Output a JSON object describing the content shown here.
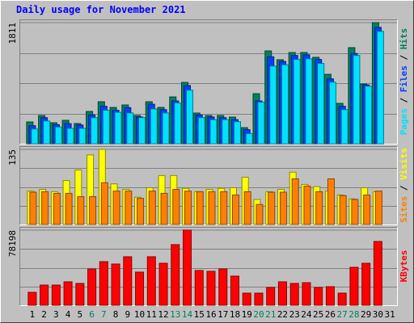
{
  "chart_data": [
    {
      "type": "bar",
      "title": "Daily usage for November 2021",
      "legend_separator": " / ",
      "ylim": [
        0,
        1811
      ],
      "yticks": [
        1811
      ],
      "series": [
        {
          "name": "Hits",
          "color": "#00805c",
          "values": [
            326,
            422,
            314,
            350,
            302,
            483,
            628,
            543,
            580,
            422,
            628,
            543,
            700,
            917,
            459,
            422,
            422,
            398,
            241,
            748,
            1388,
            1256,
            1364,
            1364,
            1292,
            1038,
            604,
            1437,
            893,
            1811,
            null
          ]
        },
        {
          "name": "Files",
          "color": "#0040ff",
          "values": [
            270,
            390,
            285,
            300,
            280,
            430,
            560,
            500,
            540,
            400,
            590,
            510,
            640,
            870,
            430,
            400,
            390,
            360,
            210,
            640,
            1300,
            1230,
            1320,
            1330,
            1260,
            970,
            560,
            1350,
            880,
            1740,
            null
          ]
        },
        {
          "name": "Pages",
          "color": "#00e0ff",
          "values": [
            220,
            340,
            250,
            230,
            230,
            390,
            500,
            470,
            460,
            390,
            520,
            460,
            610,
            800,
            390,
            360,
            360,
            330,
            150,
            620,
            1160,
            1180,
            1260,
            1270,
            1200,
            920,
            510,
            1320,
            860,
            1680,
            null
          ]
        }
      ]
    },
    {
      "type": "bar",
      "legend_separator": " / ",
      "ylim": [
        0,
        135
      ],
      "yticks": [
        135
      ],
      "series": [
        {
          "name": "Visits",
          "color": "#ffff00",
          "values": [
            60,
            63,
            59,
            79,
            98,
            125,
            135,
            73,
            63,
            49,
            66,
            88,
            88,
            65,
            59,
            63,
            65,
            66,
            85,
            45,
            59,
            63,
            94,
            72,
            68,
            60,
            53,
            46,
            66,
            59,
            null
          ]
        },
        {
          "name": "Sites",
          "color": "#ff8000",
          "values": [
            58,
            59,
            56,
            56,
            50,
            50,
            75,
            60,
            60,
            47,
            60,
            56,
            63,
            60,
            59,
            59,
            59,
            53,
            59,
            36,
            58,
            58,
            82,
            69,
            59,
            82,
            52,
            45,
            53,
            60,
            null
          ]
        }
      ]
    },
    {
      "type": "bar",
      "ylim": [
        0,
        78198
      ],
      "yticks": [
        78198
      ],
      "series": [
        {
          "name": "KBytes",
          "color": "#ff0000",
          "values": [
            13450,
            21000,
            21000,
            24400,
            22700,
            37800,
            45400,
            42900,
            50500,
            34500,
            50500,
            43700,
            63100,
            78198,
            36200,
            35300,
            37800,
            30300,
            12600,
            12600,
            18500,
            24400,
            22700,
            23500,
            18500,
            19300,
            12600,
            39500,
            43700,
            66400,
            null
          ]
        }
      ],
      "categories": [
        "1",
        "2",
        "3",
        "4",
        "5",
        "6",
        "7",
        "8",
        "9",
        "10",
        "11",
        "12",
        "13",
        "14",
        "15",
        "16",
        "17",
        "18",
        "19",
        "20",
        "21",
        "22",
        "23",
        "24",
        "25",
        "26",
        "27",
        "28",
        "29",
        "30",
        "31"
      ],
      "category_colors": [
        "#000000",
        "#000000",
        "#000000",
        "#000000",
        "#000000",
        "#00805c",
        "#00805c",
        "#000000",
        "#000000",
        "#000000",
        "#000000",
        "#000000",
        "#00805c",
        "#00805c",
        "#000000",
        "#000000",
        "#000000",
        "#000000",
        "#000000",
        "#00805c",
        "#00805c",
        "#000000",
        "#000000",
        "#000000",
        "#000000",
        "#000000",
        "#00805c",
        "#00805c",
        "#000000",
        "#000000",
        "#000000"
      ]
    }
  ]
}
